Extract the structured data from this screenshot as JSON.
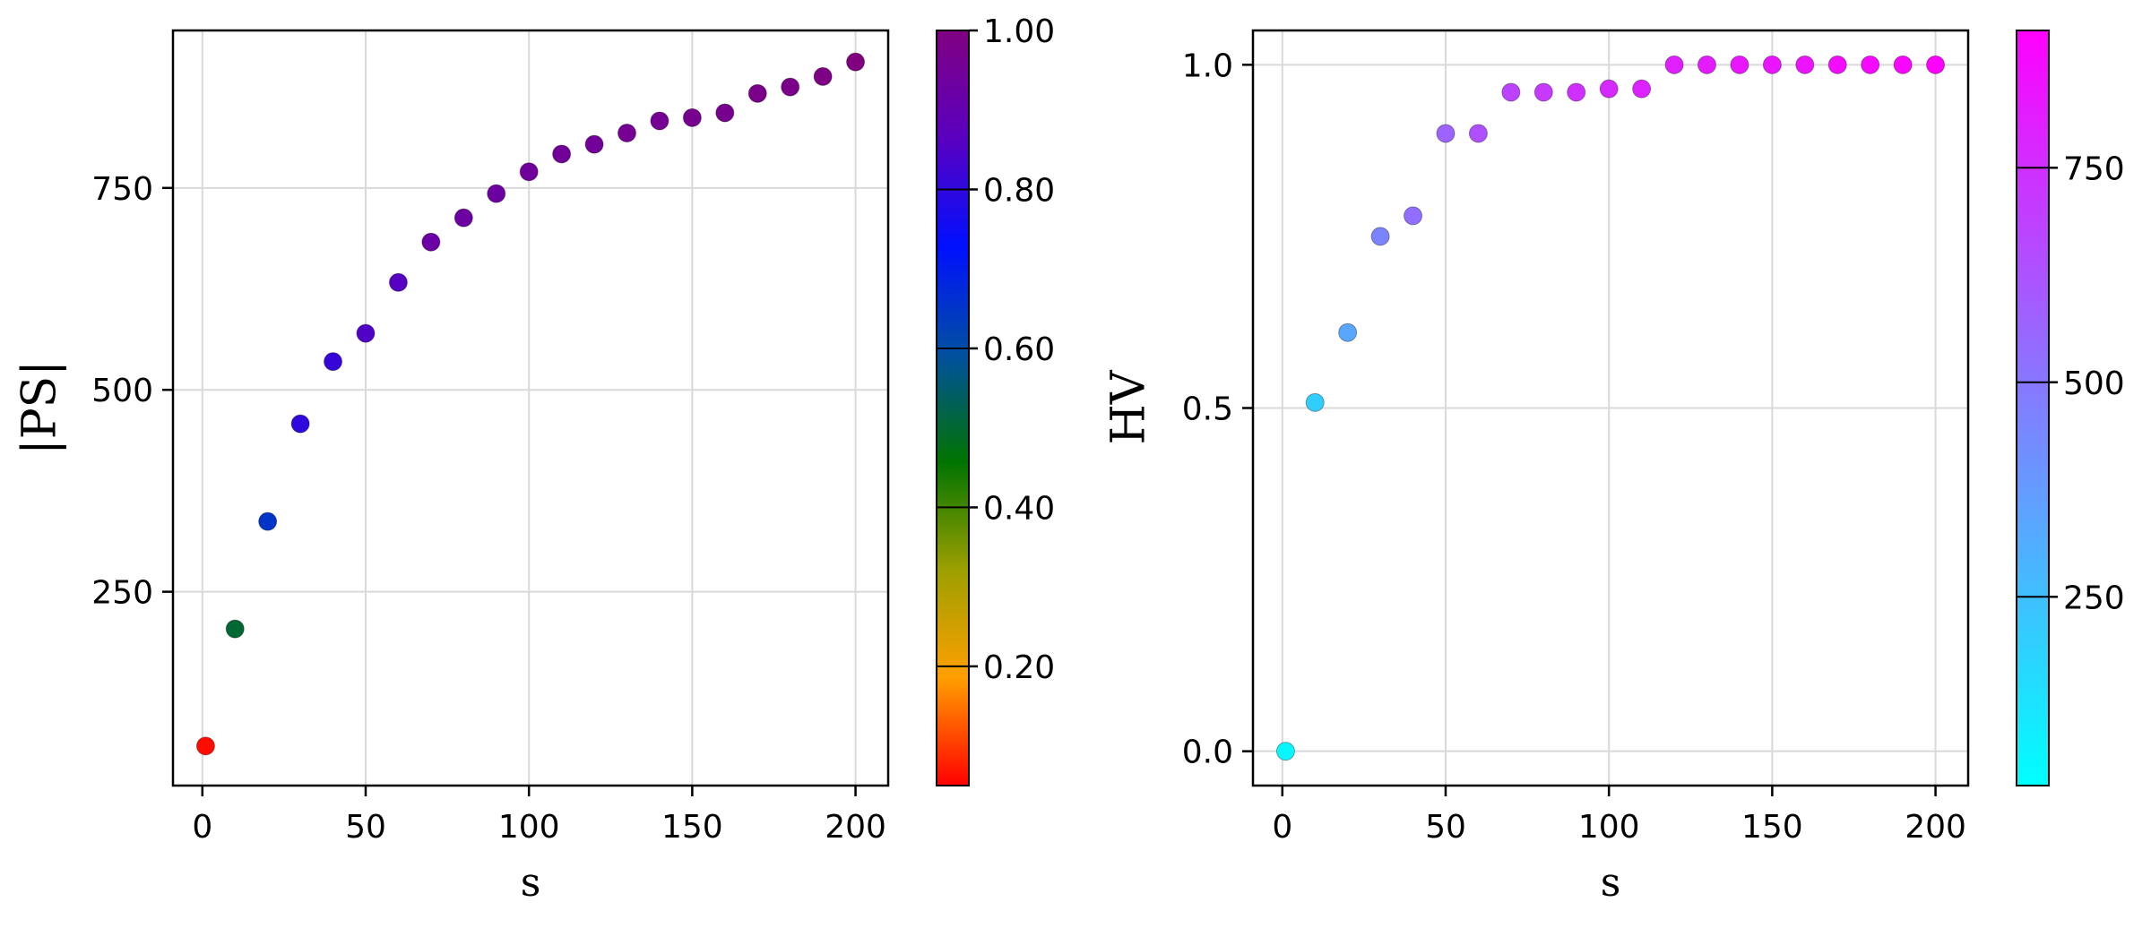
{
  "chart_data": [
    {
      "type": "scatter",
      "title": "",
      "xlabel": "s",
      "ylabel": "|PS|",
      "xlim": [
        -9,
        210
      ],
      "ylim": [
        10,
        945
      ],
      "x_ticks": [
        0,
        50,
        100,
        150,
        200
      ],
      "x_tick_labels": [
        "0",
        "50",
        "100",
        "150",
        "200"
      ],
      "y_ticks": [
        250,
        500,
        750
      ],
      "y_tick_labels": [
        "250",
        "500",
        "750"
      ],
      "grid": true,
      "series": [
        {
          "name": "|PS|",
          "x": [
            1,
            10,
            20,
            30,
            40,
            50,
            60,
            70,
            80,
            90,
            100,
            110,
            120,
            130,
            140,
            150,
            160,
            170,
            180,
            190,
            200
          ],
          "values": [
            59,
            204,
            337,
            458,
            535,
            570,
            633,
            683,
            713,
            743,
            770,
            792,
            804,
            818,
            833,
            837,
            843,
            867,
            875,
            888,
            906
          ],
          "color_values": [
            0.06,
            0.5,
            0.65,
            0.8,
            0.81,
            0.85,
            0.86,
            0.92,
            0.93,
            0.93,
            0.94,
            0.95,
            0.95,
            0.96,
            0.96,
            0.97,
            0.97,
            0.98,
            0.98,
            0.99,
            1.0
          ]
        }
      ],
      "colorbar": {
        "range": [
          0.05,
          1.0
        ],
        "ticks": [
          0.2,
          0.4,
          0.6,
          0.8,
          1.0
        ],
        "tick_labels": [
          "0.20",
          "0.40",
          "0.60",
          "0.80",
          "1.00"
        ],
        "colors": [
          "#ff0000",
          "#ff9f00",
          "#9d9f00",
          "#007400",
          "#0050a0",
          "#0010ff",
          "#5a00c0",
          "#800080"
        ]
      }
    },
    {
      "type": "scatter",
      "title": "",
      "xlabel": "s",
      "ylabel": "HV",
      "xlim": [
        -9,
        210
      ],
      "ylim": [
        -0.05,
        1.05
      ],
      "x_ticks": [
        0,
        50,
        100,
        150,
        200
      ],
      "x_tick_labels": [
        "0",
        "50",
        "100",
        "150",
        "200"
      ],
      "y_ticks": [
        0.0,
        0.5,
        1.0
      ],
      "y_tick_labels": [
        "0.0",
        "0.5",
        "1.0"
      ],
      "grid": true,
      "series": [
        {
          "name": "HV",
          "x": [
            1,
            10,
            20,
            30,
            40,
            50,
            60,
            70,
            80,
            90,
            100,
            110,
            120,
            130,
            140,
            150,
            160,
            170,
            180,
            190,
            200
          ],
          "values": [
            0.0,
            0.508,
            0.61,
            0.75,
            0.78,
            0.9,
            0.9,
            0.96,
            0.96,
            0.96,
            0.965,
            0.965,
            1.0,
            1.0,
            1.0,
            1.0,
            1.0,
            1.0,
            1.0,
            1.0,
            1.0
          ],
          "color_values": [
            59,
            204,
            337,
            458,
            535,
            570,
            633,
            683,
            713,
            743,
            770,
            792,
            804,
            818,
            833,
            837,
            843,
            867,
            875,
            888,
            906
          ]
        }
      ],
      "colorbar": {
        "range": [
          30,
          910
        ],
        "ticks": [
          250,
          500,
          750
        ],
        "tick_labels": [
          "250",
          "500",
          "750"
        ],
        "colors": [
          "#00ffff",
          "#ff00ff"
        ]
      }
    }
  ]
}
